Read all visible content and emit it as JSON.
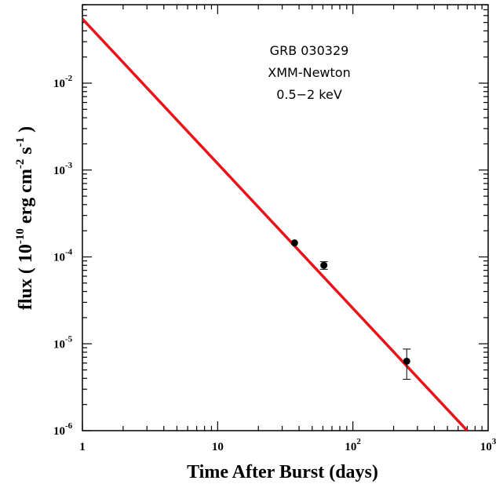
{
  "chart_data": {
    "type": "scatter",
    "xscale": "log",
    "yscale": "log",
    "xlim": [
      1,
      1000
    ],
    "ylim": [
      1e-06,
      0.08
    ],
    "grid": false,
    "xlabel": "Time After Burst (days)",
    "ylabel": {
      "prefix": "flux ( 10",
      "exp1": "-10",
      "mid1": " erg cm",
      "exp2": "-2",
      "mid2": " s",
      "exp3": "-1",
      "suffix": " )"
    },
    "x_ticks": [
      {
        "value": 1,
        "base": "1",
        "exp": ""
      },
      {
        "value": 10,
        "base": "10",
        "exp": ""
      },
      {
        "value": 100,
        "base": "10",
        "exp": "2"
      },
      {
        "value": 1000,
        "base": "10",
        "exp": "3"
      }
    ],
    "y_ticks": [
      {
        "value": 1e-06,
        "base": "10",
        "exp": "-6"
      },
      {
        "value": 1e-05,
        "base": "10",
        "exp": "-5"
      },
      {
        "value": 0.0001,
        "base": "10",
        "exp": "-4"
      },
      {
        "value": 0.001,
        "base": "10",
        "exp": "-3"
      },
      {
        "value": 0.01,
        "base": "10",
        "exp": "-2"
      }
    ],
    "annotations": [
      "GRB 030329",
      "XMM-Newton",
      "0.5−2 keV"
    ],
    "points": [
      {
        "x": 37,
        "y": 0.000145,
        "ylow": 0.000145,
        "yhigh": 0.000145
      },
      {
        "x": 61,
        "y": 8e-05,
        "ylow": 7.2e-05,
        "yhigh": 8.8e-05
      },
      {
        "x": 250,
        "y": 6.3e-06,
        "ylow": 3.9e-06,
        "yhigh": 8.7e-06
      }
    ],
    "fit_line": {
      "x": [
        1,
        700
      ],
      "y": [
        0.055,
        1e-06
      ],
      "color": "#e8141c"
    },
    "colors": {
      "points": "#000000",
      "fit": "#e8141c",
      "axes": "#000000"
    }
  }
}
